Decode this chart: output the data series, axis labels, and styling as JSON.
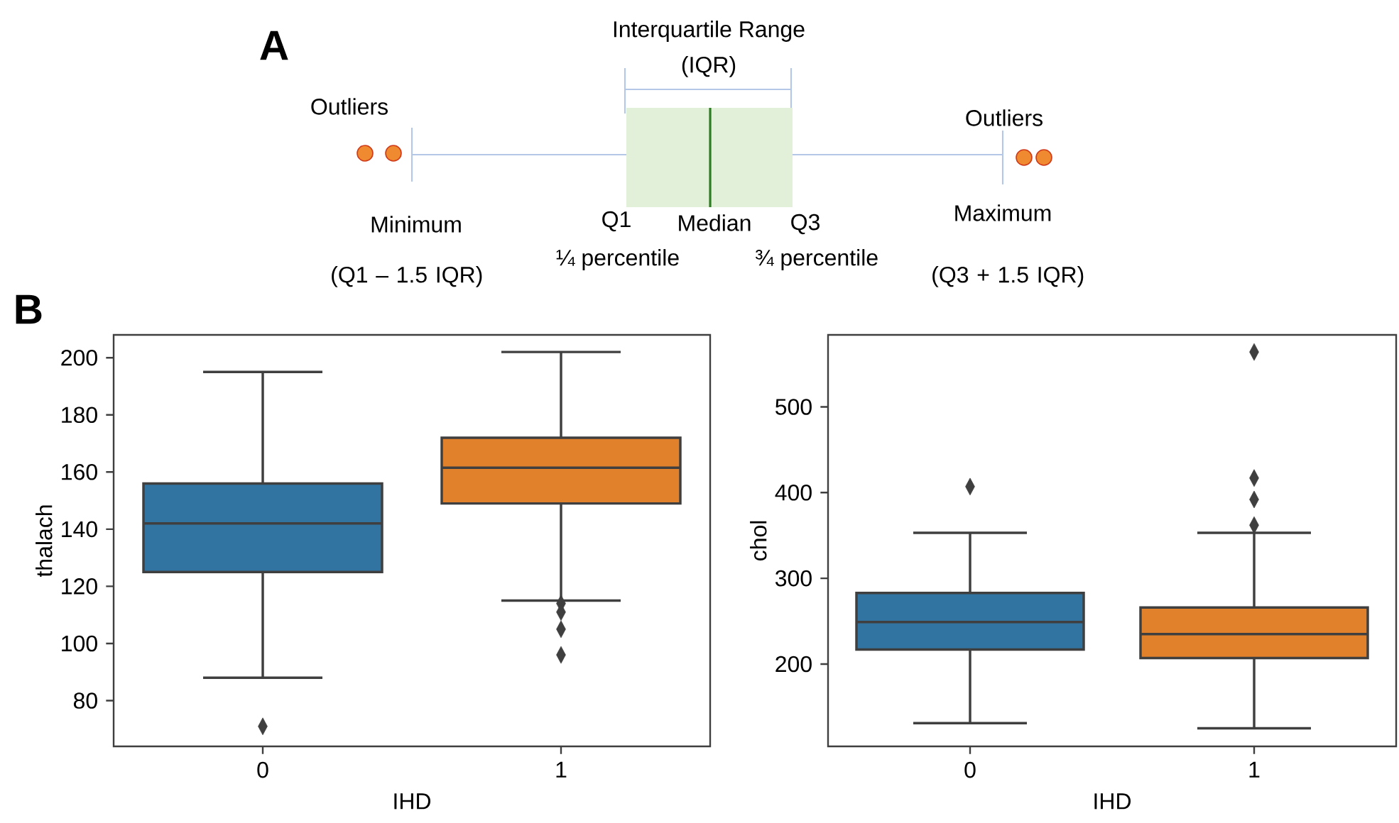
{
  "chart_data": [
    {
      "type": "other",
      "title": "A",
      "annotations": [
        "Interquartile Range",
        "(IQR)",
        "Outliers",
        "Outliers",
        "Minimum",
        "(Q1 – 1.5 IQR)",
        "Q1",
        "Median",
        "Q3",
        "¼ percentile",
        "¾ percentile",
        "Maximum",
        "(Q3 + 1.5 IQR)"
      ]
    },
    {
      "type": "box",
      "title": "B",
      "categories": [
        "0",
        "1"
      ],
      "colors": [
        "#3274a1",
        "#e1812c"
      ],
      "xlabel": "IHD",
      "ylabel": "thalach",
      "ylim": [
        64,
        208
      ],
      "yticks": [
        80,
        100,
        120,
        140,
        160,
        180,
        200
      ],
      "marker": "diamond",
      "boxes": [
        {
          "low": 88,
          "q1": 125,
          "median": 142,
          "q3": 156,
          "high": 195,
          "outliers": [
            71
          ]
        },
        {
          "low": 115,
          "q1": 149,
          "median": 161.5,
          "q3": 172,
          "high": 202,
          "outliers": [
            114,
            111,
            105,
            96
          ]
        }
      ]
    },
    {
      "type": "box",
      "categories": [
        "0",
        "1"
      ],
      "colors": [
        "#3274a1",
        "#e1812c"
      ],
      "xlabel": "IHD",
      "ylabel": "chol",
      "ylim": [
        104,
        584
      ],
      "yticks": [
        200,
        300,
        400,
        500
      ],
      "marker": "diamond",
      "boxes": [
        {
          "low": 131,
          "q1": 217,
          "median": 249,
          "q3": 283,
          "high": 353,
          "outliers": [
            407
          ]
        },
        {
          "low": 125,
          "q1": 207,
          "median": 235,
          "q3": 266,
          "high": 353,
          "outliers": [
            564,
            417,
            392,
            362
          ]
        }
      ]
    }
  ]
}
